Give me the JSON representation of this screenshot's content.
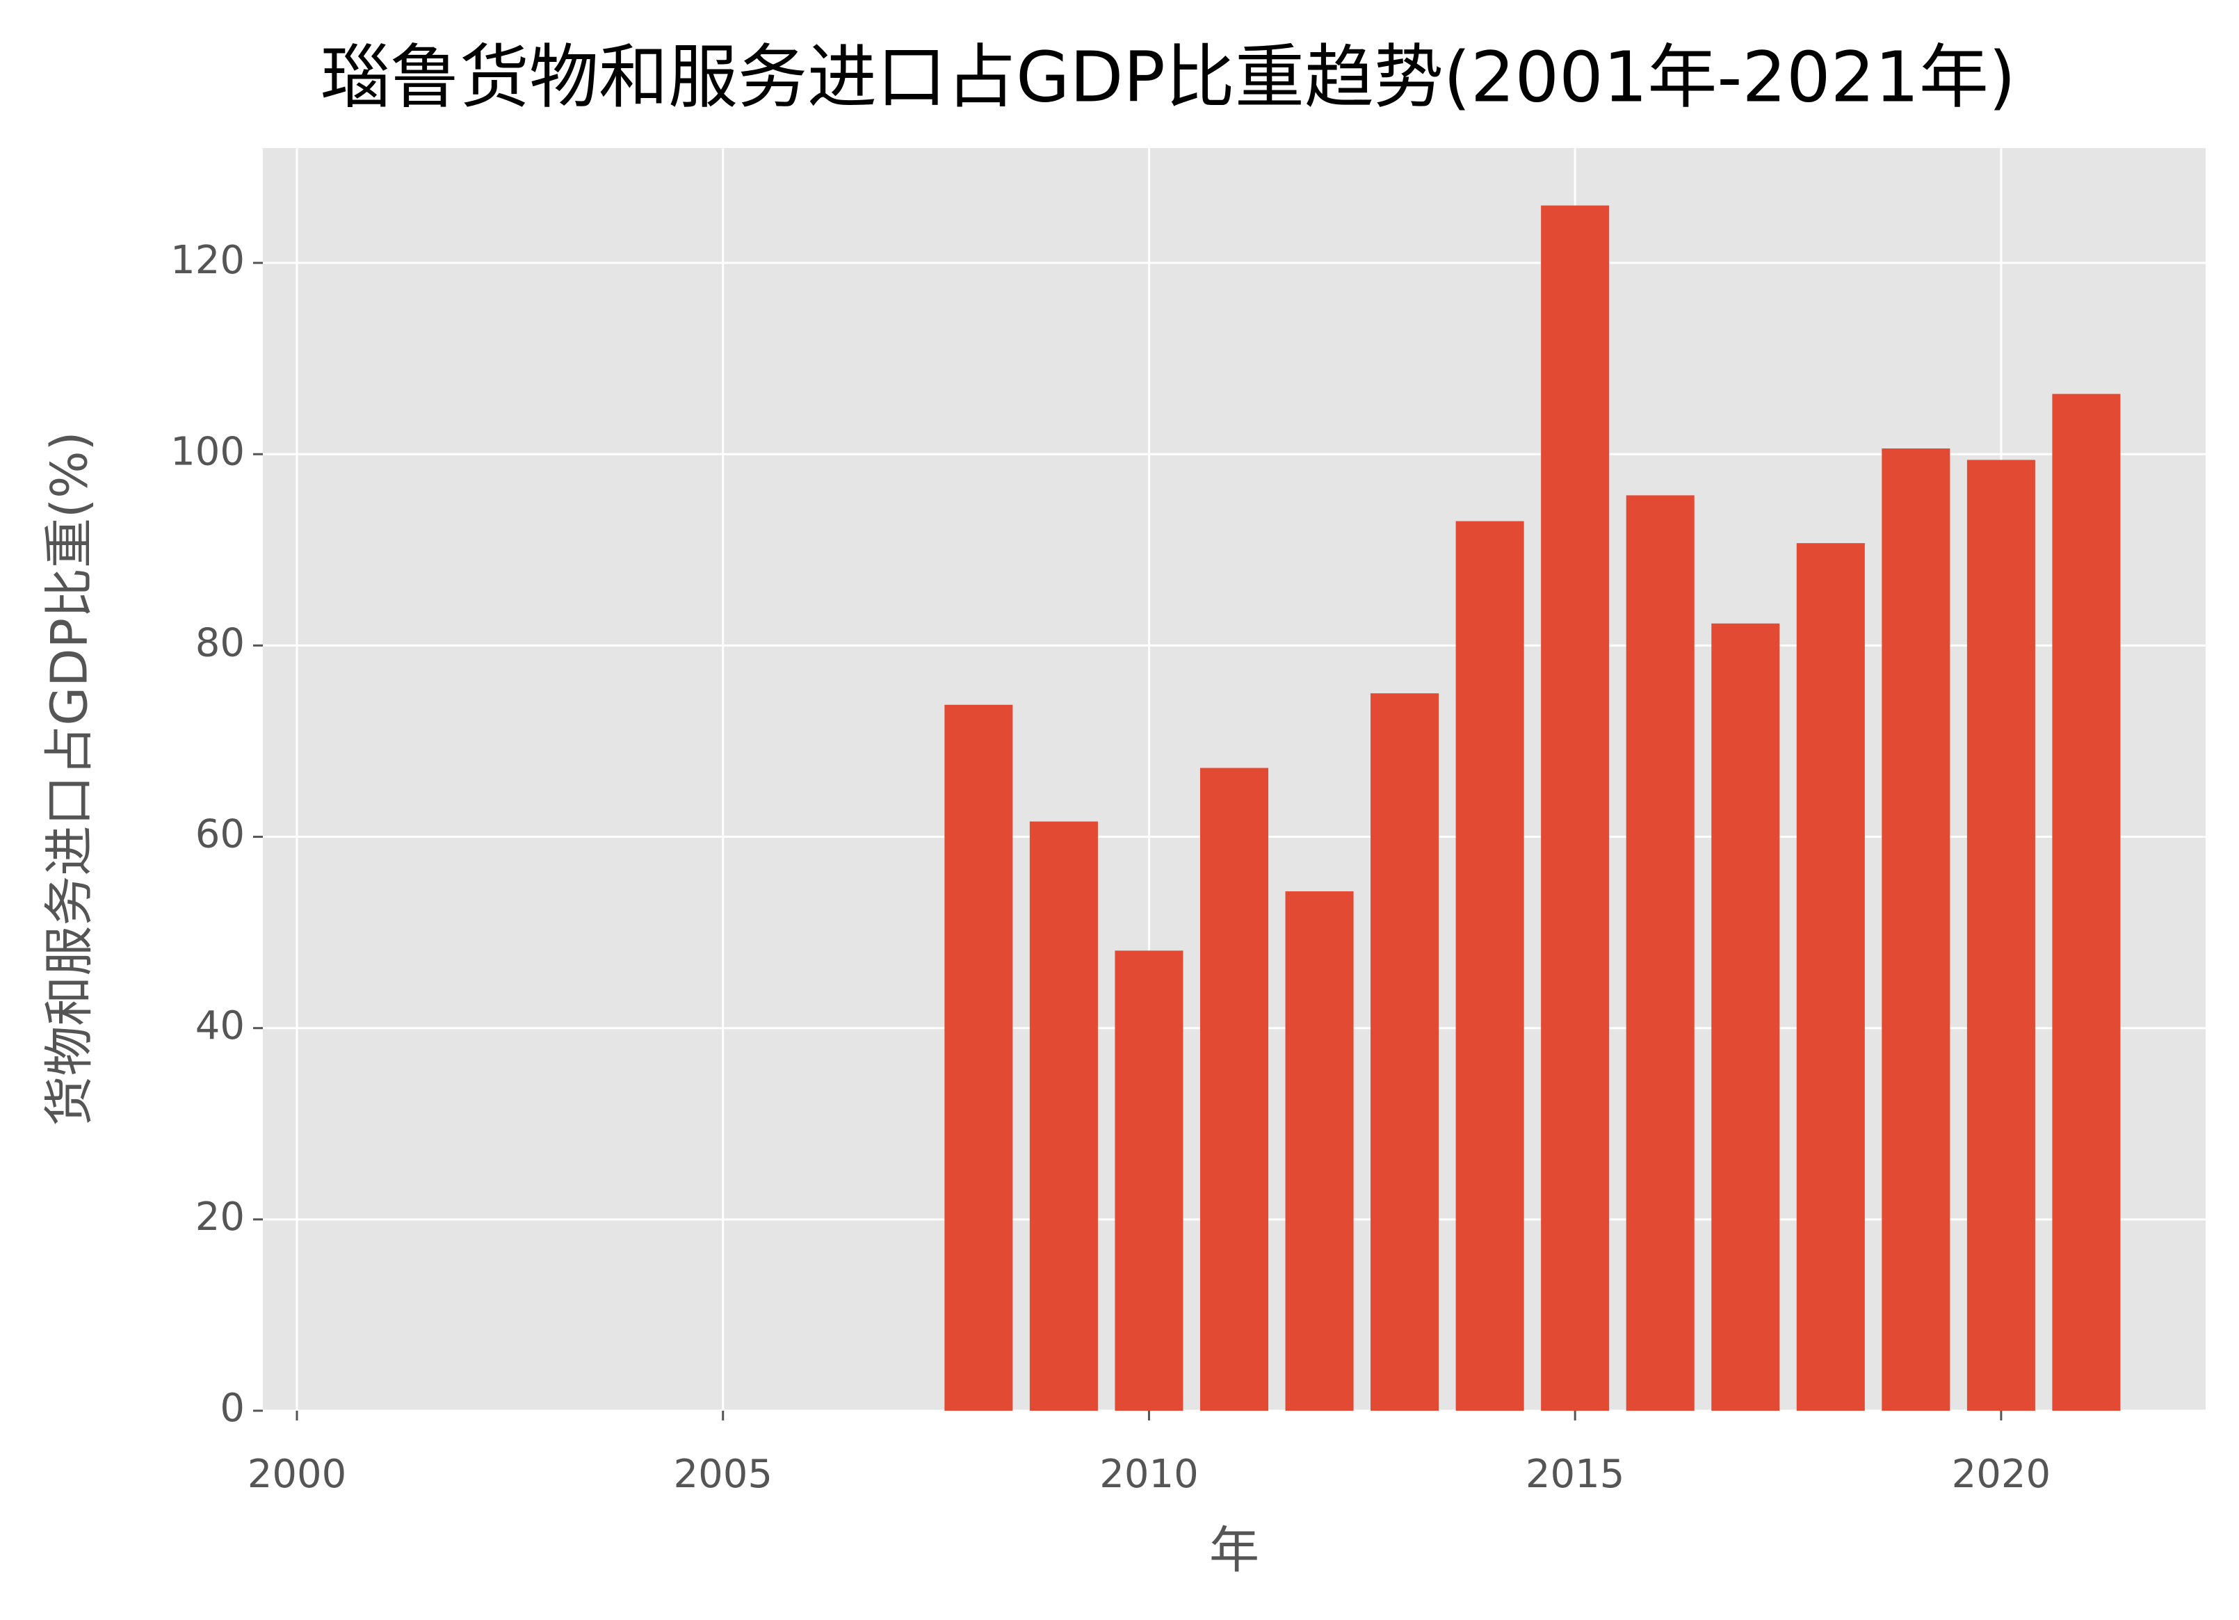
{
  "chart_data": {
    "type": "bar",
    "title": "瑙鲁货物和服务进口占GDP比重趋势(2001年-2021年)",
    "x_label": "年",
    "y_label": "货物和服务进口占GDP比重(%)",
    "x": [
      2008,
      2009,
      2010,
      2011,
      2012,
      2013,
      2014,
      2015,
      2016,
      2017,
      2018,
      2019,
      2020,
      2021
    ],
    "values": [
      73.8,
      61.6,
      48.1,
      67.2,
      54.3,
      75.0,
      93.0,
      126.0,
      95.7,
      82.3,
      90.7,
      100.6,
      99.4,
      106.3
    ],
    "color": "#e24a33",
    "xlim": [
      1999.6,
      2022.4
    ],
    "xticks": [
      2000,
      2005,
      2010,
      2015,
      2020
    ],
    "ylim": [
      0,
      132
    ],
    "yticks": [
      0,
      20,
      40,
      60,
      80,
      100,
      120
    ],
    "grid": true
  }
}
